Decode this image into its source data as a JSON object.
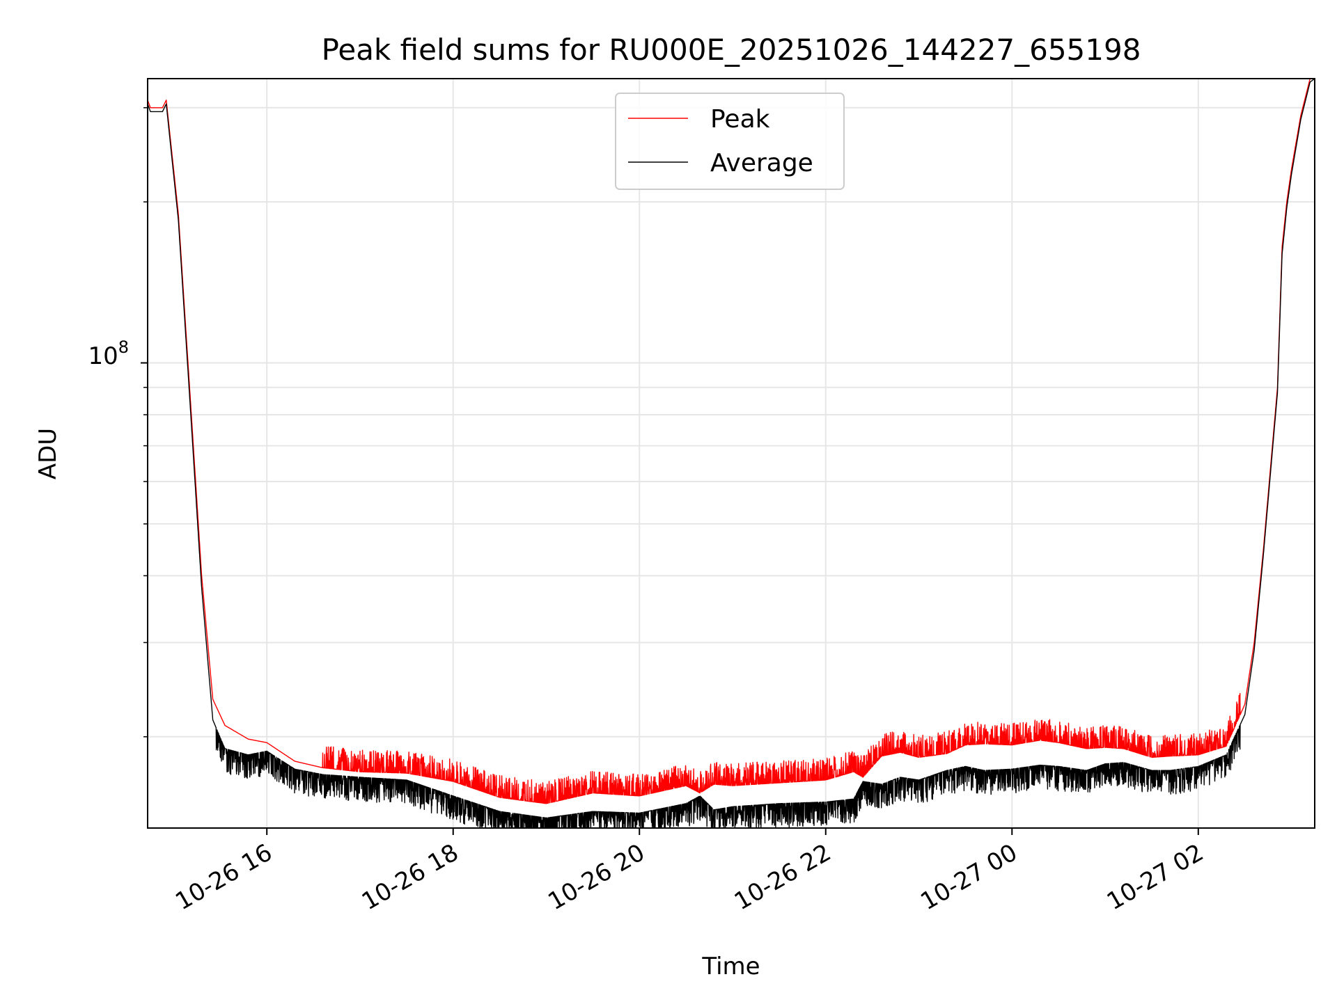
{
  "chart_data": {
    "type": "line",
    "title": "Peak field sums for RU000E_20251026_144227_655198",
    "xlabel": "Time",
    "ylabel": "ADU",
    "yscale": "log",
    "grid": true,
    "legend_position": "upper-center",
    "xlim_hours": [
      14.72,
      27.25
    ],
    "ylim": [
      13500000,
      340000000
    ],
    "x_unit": "hours since 2025-10-26 00:00",
    "x_ticks": [
      {
        "value": 16,
        "label": "10-26 16"
      },
      {
        "value": 18,
        "label": "10-26 18"
      },
      {
        "value": 20,
        "label": "10-26 20"
      },
      {
        "value": 22,
        "label": "10-26 22"
      },
      {
        "value": 24,
        "label": "10-27 00"
      },
      {
        "value": 26,
        "label": "10-27 02"
      }
    ],
    "y_major_tick": {
      "value": 100000000,
      "base": "10",
      "exponent": "8"
    },
    "y_minor_ticks": [
      20000000,
      30000000,
      40000000,
      50000000,
      60000000,
      70000000,
      80000000,
      90000000,
      200000000,
      300000000
    ],
    "series": [
      {
        "name": "Peak",
        "color": "#ff0000",
        "x": [
          14.72,
          14.75,
          14.88,
          14.92,
          15.05,
          15.2,
          15.3,
          15.42,
          15.55,
          15.8,
          16.0,
          16.3,
          16.6,
          17.0,
          17.5,
          18.0,
          18.5,
          19.0,
          19.5,
          20.0,
          20.5,
          20.65,
          20.8,
          21.0,
          21.5,
          22.0,
          22.3,
          22.4,
          22.6,
          22.8,
          23.0,
          23.3,
          23.5,
          23.7,
          24.0,
          24.3,
          24.5,
          24.8,
          25.0,
          25.2,
          25.5,
          25.7,
          26.0,
          26.3,
          26.5,
          26.6,
          26.7,
          26.85,
          26.9,
          26.95,
          27.0,
          27.1,
          27.2,
          27.25
        ],
        "y": [
          310000000,
          300000000,
          300000000,
          310000000,
          190000000,
          75000000,
          40000000,
          23500000,
          21000000,
          19800000,
          19500000,
          18000000,
          17500000,
          17200000,
          17100000,
          16500000,
          15400000,
          15000000,
          15700000,
          15500000,
          16200000,
          15700000,
          16300000,
          16200000,
          16400000,
          16600000,
          17200000,
          16800000,
          18400000,
          18700000,
          18300000,
          18600000,
          19300000,
          19400000,
          19300000,
          19700000,
          19500000,
          19000000,
          19100000,
          19000000,
          18300000,
          18400000,
          18500000,
          19200000,
          23000000,
          30000000,
          45000000,
          90000000,
          165000000,
          200000000,
          230000000,
          290000000,
          340000000,
          345000000
        ]
      },
      {
        "name": "Average",
        "color": "#000000",
        "x": [
          14.72,
          14.75,
          14.88,
          14.92,
          15.05,
          15.2,
          15.3,
          15.42,
          15.55,
          15.8,
          16.0,
          16.3,
          16.6,
          17.0,
          17.5,
          18.0,
          18.5,
          19.0,
          19.5,
          20.0,
          20.5,
          20.65,
          20.8,
          21.0,
          21.5,
          22.0,
          22.3,
          22.4,
          22.6,
          22.8,
          23.0,
          23.3,
          23.5,
          23.7,
          24.0,
          24.3,
          24.5,
          24.8,
          25.0,
          25.2,
          25.5,
          25.7,
          26.0,
          26.3,
          26.5,
          26.6,
          26.7,
          26.85,
          26.9,
          26.95,
          27.0,
          27.1,
          27.2,
          27.25
        ],
        "y": [
          305000000,
          295000000,
          295000000,
          305000000,
          185000000,
          72000000,
          38000000,
          21500000,
          19000000,
          18500000,
          18800000,
          17400000,
          17000000,
          16800000,
          16600000,
          15500000,
          14500000,
          14100000,
          14500000,
          14400000,
          15000000,
          15500000,
          14600000,
          14800000,
          15000000,
          15100000,
          15300000,
          16500000,
          16300000,
          16800000,
          16600000,
          17300000,
          17600000,
          17300000,
          17400000,
          17700000,
          17600000,
          17300000,
          17800000,
          17900000,
          17300000,
          17300000,
          17600000,
          18500000,
          22000000,
          29000000,
          44000000,
          88000000,
          160000000,
          195000000,
          225000000,
          285000000,
          335000000,
          340000000
        ]
      }
    ]
  }
}
